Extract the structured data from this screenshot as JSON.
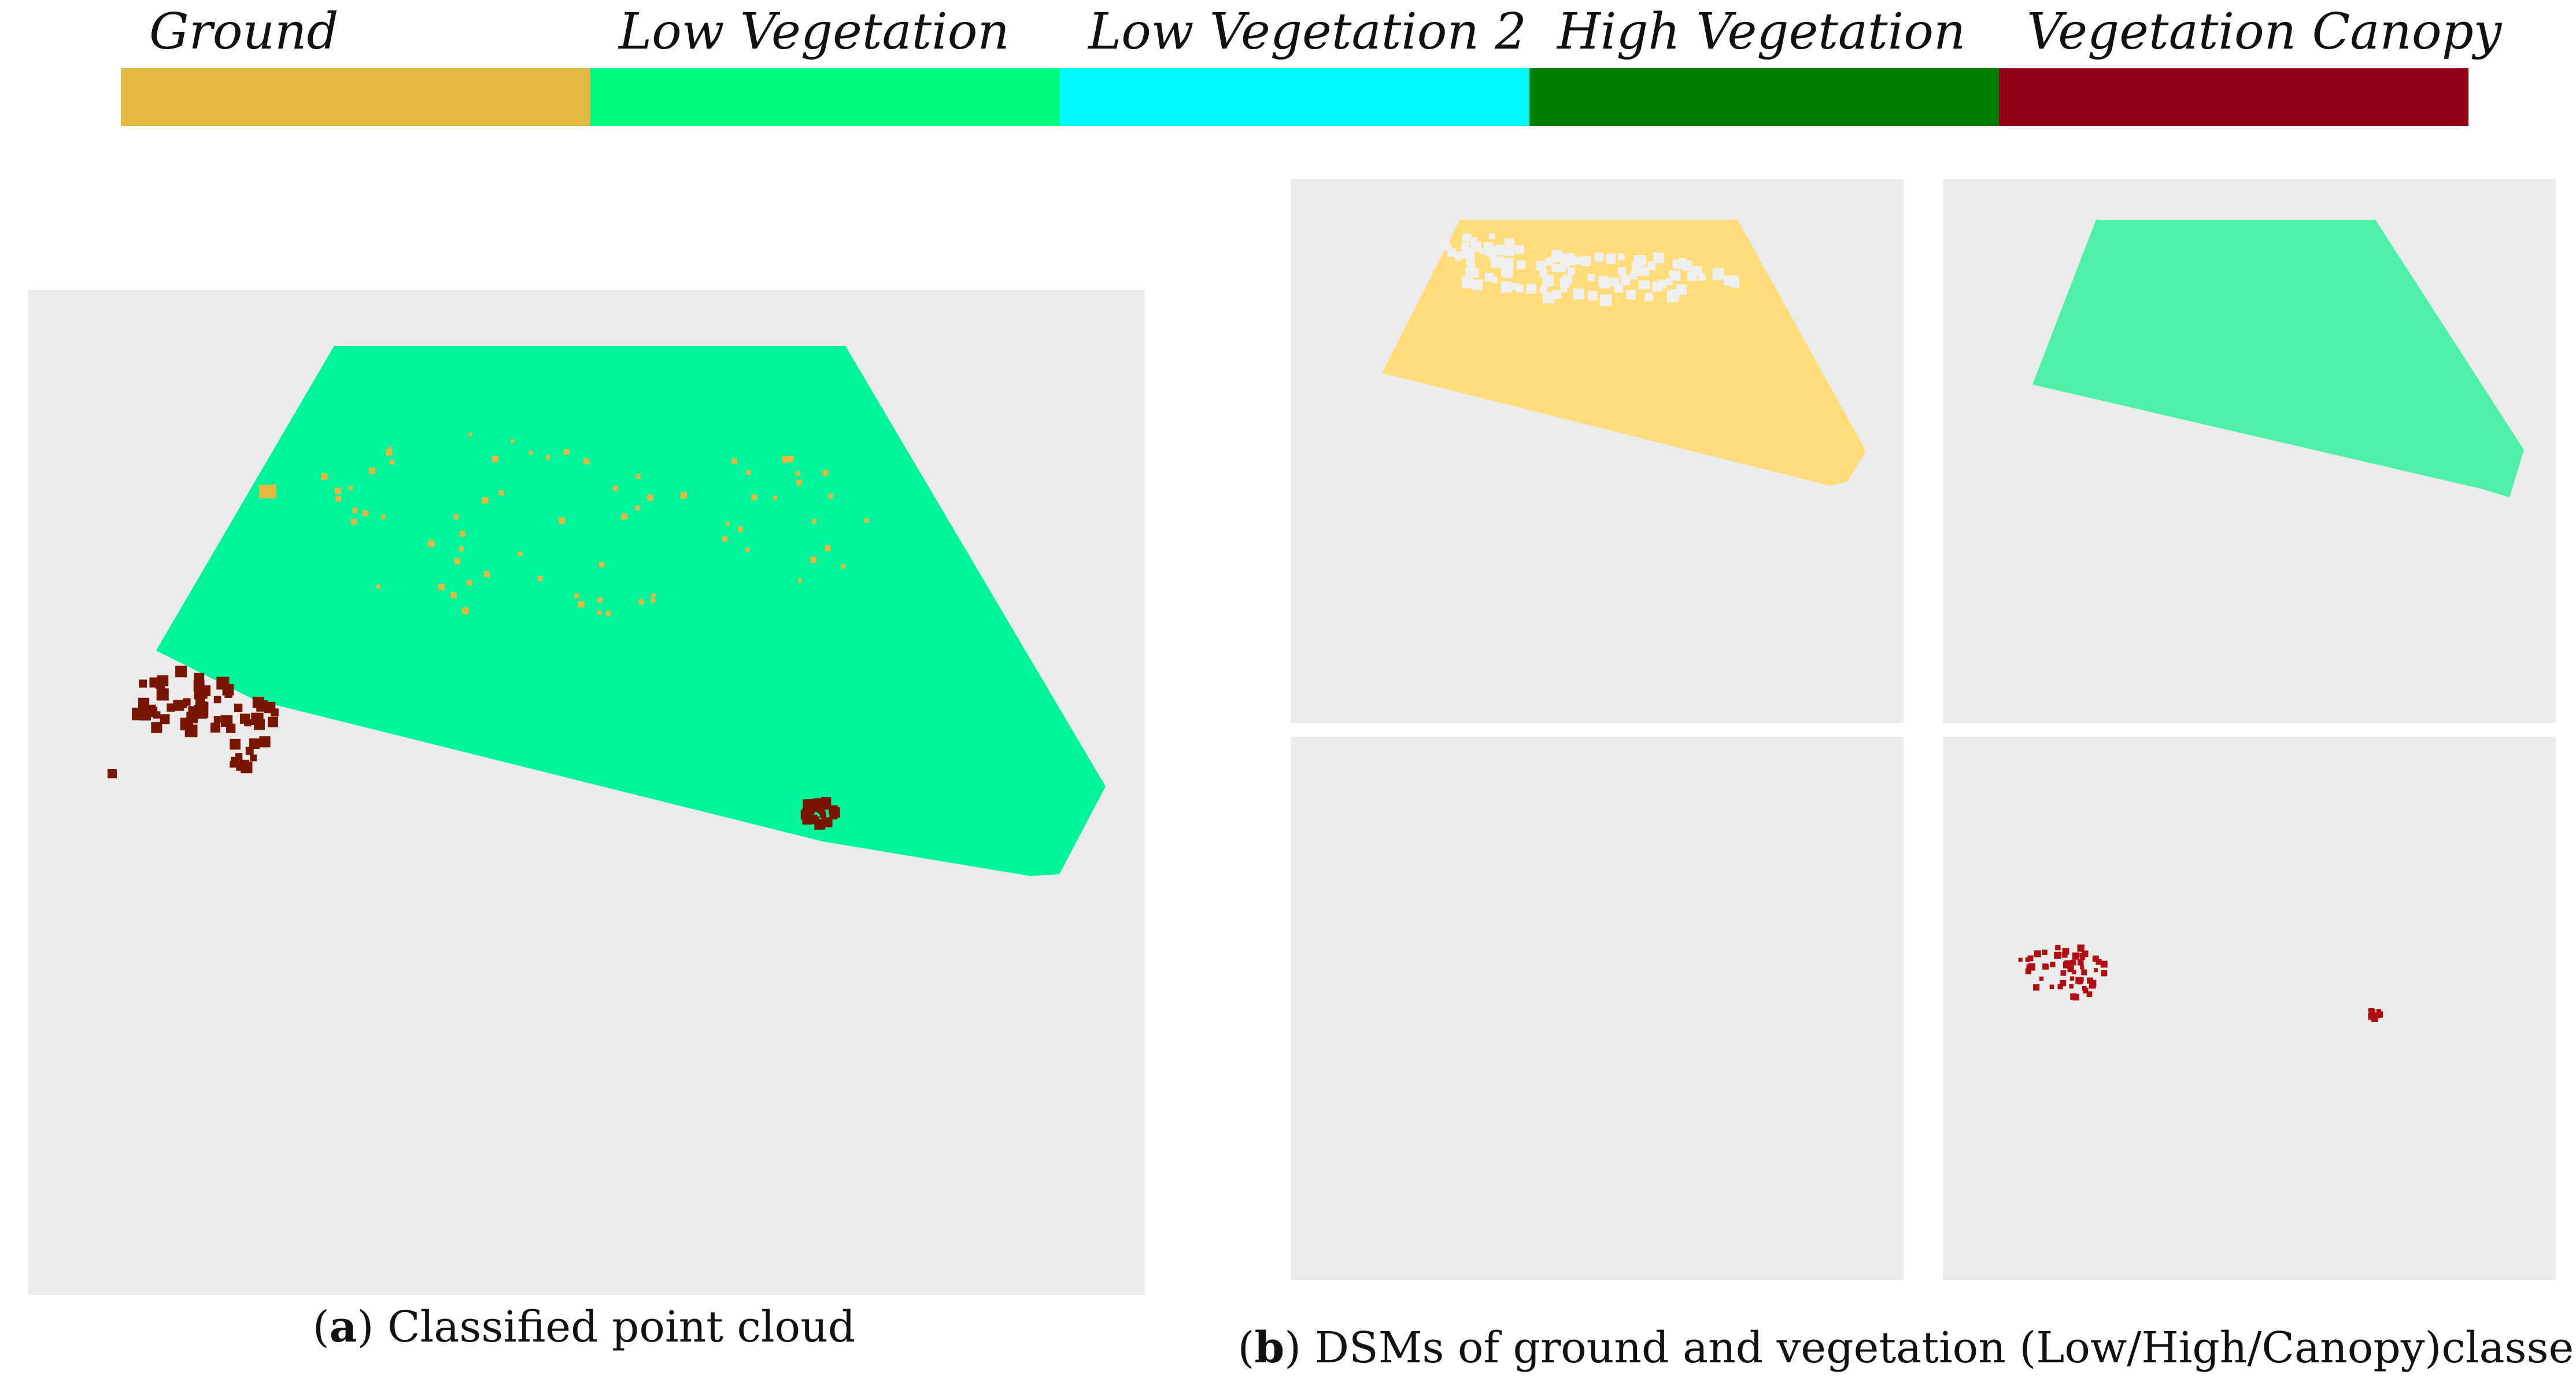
{
  "legend": {
    "items": [
      {
        "label": "Ground",
        "color": "#E3B840"
      },
      {
        "label": "Low Vegetation",
        "color": "#00FA7E"
      },
      {
        "label": "Low Vegetation 2",
        "color": "#00FAFF"
      },
      {
        "label": "High Vegetation",
        "color": "#008000"
      },
      {
        "label": "Vegetation Canopy",
        "color": "#92001A"
      }
    ]
  },
  "panels": {
    "a": {
      "letter": "a",
      "caption_text": "Classified point cloud",
      "background": "#EBEBEB"
    },
    "b": {
      "letter": "b",
      "caption_text": "DSMs of ground and vegetation (Low/High/Canopy)classes",
      "background": "#EBEBEB"
    }
  },
  "colors": {
    "ground_cloud": "#E3B840",
    "low_veg_cloud": "#00F59A",
    "canopy_cloud": "#7A1600",
    "ground_dsm": "#FFDC78",
    "low_veg_dsm": "#4EF0A8",
    "canopy_dsm": "#B00E12"
  }
}
